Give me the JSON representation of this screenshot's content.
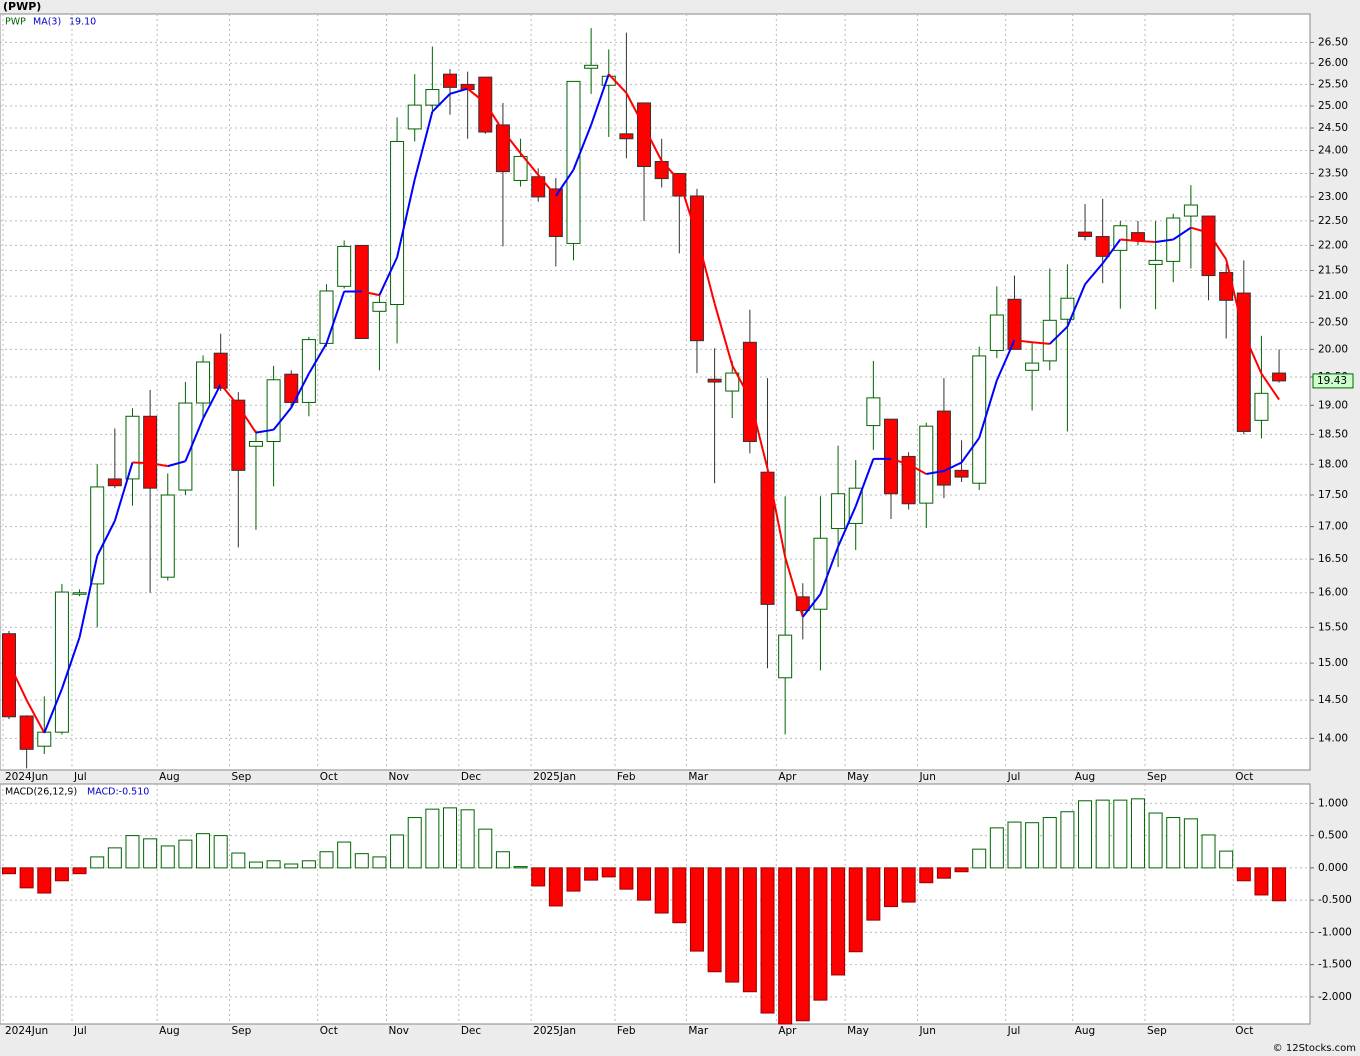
{
  "header": "(PWP)",
  "footer": "© 12Stocks.com",
  "chart_data": [
    {
      "type": "candlestick",
      "log_scale": true,
      "grid": true,
      "categories": [
        null,
        null,
        null,
        null,
        null,
        null,
        null,
        null,
        null,
        null,
        null,
        null,
        null,
        null,
        null,
        null,
        null,
        null,
        null,
        null,
        null,
        null,
        null,
        null,
        null,
        null,
        null,
        null,
        null,
        null,
        null,
        null,
        null,
        null,
        null,
        null,
        null,
        null,
        null,
        null,
        null,
        null,
        null,
        null,
        null,
        null,
        null,
        null,
        null,
        null,
        null,
        null,
        null,
        null,
        null,
        null,
        null,
        null,
        null,
        null,
        null,
        null,
        null,
        null,
        null,
        null,
        null,
        null,
        null,
        null,
        null,
        null,
        null
      ],
      "series": [
        {
          "name": "PWP",
          "up_color": "#006400",
          "down_color": "#ff0000",
          "open": [
            15.41,
            14.29,
            13.9,
            14.08,
            15.99,
            16.13,
            17.76,
            17.76,
            18.81,
            16.23,
            17.58,
            19.04,
            19.93,
            19.09,
            18.3,
            18.38,
            19.55,
            19.05,
            20.11,
            21.19,
            22.0,
            20.71,
            20.84,
            24.48,
            25.02,
            25.74,
            25.5,
            25.67,
            24.57,
            23.35,
            23.43,
            23.17,
            22.04,
            25.88,
            25.48,
            24.37,
            25.07,
            23.76,
            23.5,
            23.02,
            19.46,
            19.25,
            20.13,
            17.87,
            14.8,
            15.94,
            15.76,
            16.97,
            17.05,
            18.65,
            18.76,
            18.13,
            17.37,
            18.9,
            17.9,
            17.69,
            19.98,
            20.94,
            19.62,
            19.79,
            20.56,
            22.27,
            22.18,
            21.9,
            22.26,
            21.62,
            21.68,
            22.6,
            22.6,
            21.46,
            21.06,
            18.74,
            19.57
          ],
          "high": [
            15.45,
            14.3,
            14.55,
            16.13,
            16.05,
            18.0,
            18.6,
            18.95,
            19.27,
            17.85,
            19.41,
            19.89,
            20.29,
            19.23,
            18.57,
            19.7,
            19.62,
            20.23,
            21.23,
            22.1,
            22.0,
            21.06,
            24.74,
            25.74,
            26.4,
            25.86,
            25.8,
            25.67,
            25.07,
            24.26,
            23.61,
            23.4,
            25.57,
            26.85,
            26.33,
            26.74,
            25.07,
            24.26,
            23.5,
            23.17,
            20.02,
            19.79,
            20.74,
            19.48,
            17.48,
            16.14,
            17.48,
            18.31,
            18.07,
            19.79,
            18.76,
            18.2,
            18.7,
            19.48,
            18.4,
            20.05,
            21.19,
            21.4,
            20.14,
            21.54,
            21.62,
            22.85,
            22.96,
            22.5,
            22.5,
            22.5,
            22.65,
            23.25,
            22.6,
            21.63,
            21.7,
            20.25,
            20.0
          ],
          "low": [
            14.25,
            13.62,
            13.8,
            14.05,
            15.95,
            15.5,
            17.61,
            17.33,
            16.0,
            16.18,
            17.5,
            18.78,
            19.25,
            16.68,
            16.95,
            17.64,
            18.95,
            18.81,
            20.05,
            21.15,
            20.2,
            19.62,
            20.11,
            24.2,
            24.9,
            24.8,
            24.26,
            24.37,
            21.98,
            23.22,
            22.9,
            21.58,
            21.7,
            25.28,
            24.3,
            23.83,
            22.5,
            23.2,
            21.84,
            19.57,
            17.69,
            18.78,
            18.18,
            14.93,
            14.05,
            15.33,
            14.9,
            16.38,
            16.64,
            18.24,
            17.12,
            17.27,
            16.98,
            17.45,
            17.71,
            17.58,
            19.84,
            20.0,
            18.91,
            19.62,
            18.55,
            22.1,
            21.25,
            20.76,
            22.0,
            20.75,
            21.27,
            21.54,
            20.92,
            20.2,
            18.5,
            18.43,
            19.4
          ],
          "close": [
            14.28,
            13.86,
            14.08,
            16.01,
            16.0,
            17.63,
            17.65,
            18.81,
            17.61,
            17.5,
            19.04,
            19.77,
            19.3,
            17.9,
            18.38,
            19.45,
            19.05,
            20.18,
            21.1,
            21.98,
            20.2,
            20.88,
            24.2,
            25.02,
            25.38,
            25.43,
            25.38,
            24.41,
            23.54,
            23.87,
            23.0,
            22.18,
            25.57,
            25.95,
            25.69,
            24.26,
            23.65,
            23.39,
            23.02,
            20.16,
            19.41,
            19.57,
            18.38,
            15.83,
            15.39,
            15.74,
            16.82,
            17.52,
            17.61,
            19.13,
            17.52,
            17.36,
            18.64,
            17.66,
            17.79,
            19.88,
            20.64,
            20.0,
            19.75,
            20.54,
            20.96,
            22.18,
            21.78,
            22.4,
            22.1,
            21.7,
            22.56,
            22.83,
            21.4,
            20.92,
            18.55,
            19.21,
            19.43
          ]
        },
        {
          "name": "MA(3)",
          "up_color": "#0000ff",
          "down_color": "#ff0000",
          "value_label": "19.10",
          "values": [
            15.0,
            14.5,
            14.07,
            14.65,
            15.36,
            16.55,
            17.09,
            18.03,
            18.02,
            17.97,
            18.05,
            18.77,
            19.37,
            18.99,
            18.53,
            18.58,
            18.96,
            19.56,
            20.11,
            21.09,
            21.09,
            21.02,
            21.76,
            23.37,
            24.87,
            25.28,
            25.4,
            25.07,
            24.44,
            23.94,
            23.47,
            23.02,
            23.58,
            24.57,
            25.74,
            25.3,
            24.53,
            23.77,
            23.35,
            22.19,
            20.86,
            19.71,
            19.12,
            17.93,
            16.53,
            15.65,
            15.98,
            16.69,
            17.32,
            18.09,
            18.09,
            18.0,
            17.84,
            17.89,
            18.03,
            18.44,
            19.44,
            20.17,
            20.13,
            20.1,
            20.42,
            21.23,
            21.64,
            22.12,
            22.09,
            22.07,
            22.12,
            22.36,
            22.26,
            21.72,
            20.29,
            19.56,
            19.1
          ]
        }
      ],
      "ylim": [
        13.6,
        27.2
      ],
      "yticks": [
        {
          "value": 14,
          "label": "14.00"
        },
        {
          "value": 14.5,
          "label": "14.50"
        },
        {
          "value": 15,
          "label": "15.00"
        },
        {
          "value": 15.5,
          "label": "15.50"
        },
        {
          "value": 16,
          "label": "16.00"
        },
        {
          "value": 16.5,
          "label": "16.50"
        },
        {
          "value": 17,
          "label": "17.00"
        },
        {
          "value": 17.5,
          "label": "17.50"
        },
        {
          "value": 18,
          "label": "18.00"
        },
        {
          "value": 18.5,
          "label": "18.50"
        },
        {
          "value": 19,
          "label": "19.00"
        },
        {
          "value": 19.5,
          "label": "19.50"
        },
        {
          "value": 20,
          "label": "20.00"
        },
        {
          "value": 20.5,
          "label": "20.50"
        },
        {
          "value": 21,
          "label": "21.00"
        },
        {
          "value": 21.5,
          "label": "21.50"
        },
        {
          "value": 22,
          "label": "22.00"
        },
        {
          "value": 22.5,
          "label": "22.50"
        },
        {
          "value": 23,
          "label": "23.00"
        },
        {
          "value": 23.5,
          "label": "23.50"
        },
        {
          "value": 24,
          "label": "24.00"
        },
        {
          "value": 24.5,
          "label": "24.50"
        },
        {
          "value": 25,
          "label": "25.00"
        },
        {
          "value": 25.5,
          "label": "25.50"
        },
        {
          "value": 26,
          "label": "26.00"
        },
        {
          "value": 26.5,
          "label": "26.50"
        }
      ],
      "xticks": [
        {
          "value": -0.34,
          "label": "2024Jun"
        },
        {
          "value": 3.57,
          "label": "Jul"
        },
        {
          "value": 8.4,
          "label": "Aug"
        },
        {
          "value": 12.5,
          "label": "Sep"
        },
        {
          "value": 17.5,
          "label": "Oct"
        },
        {
          "value": 21.4,
          "label": "Nov"
        },
        {
          "value": 25.5,
          "label": "Dec"
        },
        {
          "value": 29.6,
          "label": "2025Jan"
        },
        {
          "value": 34.35,
          "label": "Feb"
        },
        {
          "value": 38.4,
          "label": "Mar"
        },
        {
          "value": 43.5,
          "label": "Apr"
        },
        {
          "value": 47.4,
          "label": "May"
        },
        {
          "value": 51.5,
          "label": "Jun"
        },
        {
          "value": 56.5,
          "label": "Jul"
        },
        {
          "value": 60.3,
          "label": "Aug"
        },
        {
          "value": 64.4,
          "label": "Sep"
        },
        {
          "value": 69.4,
          "label": "Oct"
        }
      ]
    },
    {
      "type": "bar",
      "title": "MACD(26,12,9)",
      "legend": "MACD:-0.510",
      "grid": true,
      "up_color": "#006400",
      "down_color": "#ff0000",
      "categories": [
        null,
        null,
        null,
        null,
        null,
        null,
        null,
        null,
        null,
        null,
        null,
        null,
        null,
        null,
        null,
        null,
        null,
        null,
        null,
        null,
        null,
        null,
        null,
        null,
        null,
        null,
        null,
        null,
        null,
        null,
        null,
        null,
        null,
        null,
        null,
        null,
        null,
        null,
        null,
        null,
        null,
        null,
        null,
        null,
        null,
        null,
        null,
        null,
        null,
        null,
        null,
        null,
        null,
        null,
        null,
        null,
        null,
        null,
        null,
        null,
        null,
        null,
        null,
        null,
        null,
        null,
        null,
        null,
        null,
        null,
        null,
        null,
        null
      ],
      "values": [
        -0.09,
        -0.31,
        -0.39,
        -0.2,
        -0.09,
        0.17,
        0.31,
        0.5,
        0.45,
        0.34,
        0.43,
        0.53,
        0.5,
        0.23,
        0.09,
        0.11,
        0.06,
        0.11,
        0.25,
        0.4,
        0.22,
        0.17,
        0.51,
        0.78,
        0.91,
        0.93,
        0.9,
        0.6,
        0.25,
        0.02,
        -0.28,
        -0.59,
        -0.36,
        -0.19,
        -0.14,
        -0.33,
        -0.5,
        -0.7,
        -0.85,
        -1.29,
        -1.61,
        -1.77,
        -1.92,
        -2.25,
        -2.42,
        -2.37,
        -2.05,
        -1.66,
        -1.3,
        -0.81,
        -0.6,
        -0.53,
        -0.23,
        -0.16,
        -0.06,
        0.29,
        0.62,
        0.71,
        0.7,
        0.78,
        0.87,
        1.04,
        1.05,
        1.05,
        1.07,
        0.85,
        0.78,
        0.76,
        0.51,
        0.26,
        -0.2,
        -0.42,
        -0.51
      ],
      "ylim": [
        -2.42,
        1.3
      ],
      "yticks": [
        {
          "value": -2,
          "label": "-2.000"
        },
        {
          "value": -1.5,
          "label": "-1.500"
        },
        {
          "value": -1,
          "label": "-1.000"
        },
        {
          "value": -0.5,
          "label": "-0.500"
        },
        {
          "value": 0,
          "label": "0.000"
        },
        {
          "value": 0.5,
          "label": "0.500"
        },
        {
          "value": 1,
          "label": "1.000"
        }
      ],
      "xticks": [
        {
          "value": -0.34,
          "label": "2024Jun"
        },
        {
          "value": 3.57,
          "label": "Jul"
        },
        {
          "value": 8.4,
          "label": "Aug"
        },
        {
          "value": 12.5,
          "label": "Sep"
        },
        {
          "value": 17.5,
          "label": "Oct"
        },
        {
          "value": 21.4,
          "label": "Nov"
        },
        {
          "value": 25.5,
          "label": "Dec"
        },
        {
          "value": 29.6,
          "label": "2025Jan"
        },
        {
          "value": 34.35,
          "label": "Feb"
        },
        {
          "value": 38.4,
          "label": "Mar"
        },
        {
          "value": 43.5,
          "label": "Apr"
        },
        {
          "value": 47.4,
          "label": "May"
        },
        {
          "value": 51.5,
          "label": "Jun"
        },
        {
          "value": 56.5,
          "label": "Jul"
        },
        {
          "value": 60.3,
          "label": "Aug"
        },
        {
          "value": 64.4,
          "label": "Sep"
        },
        {
          "value": 69.4,
          "label": "Oct"
        }
      ]
    }
  ]
}
